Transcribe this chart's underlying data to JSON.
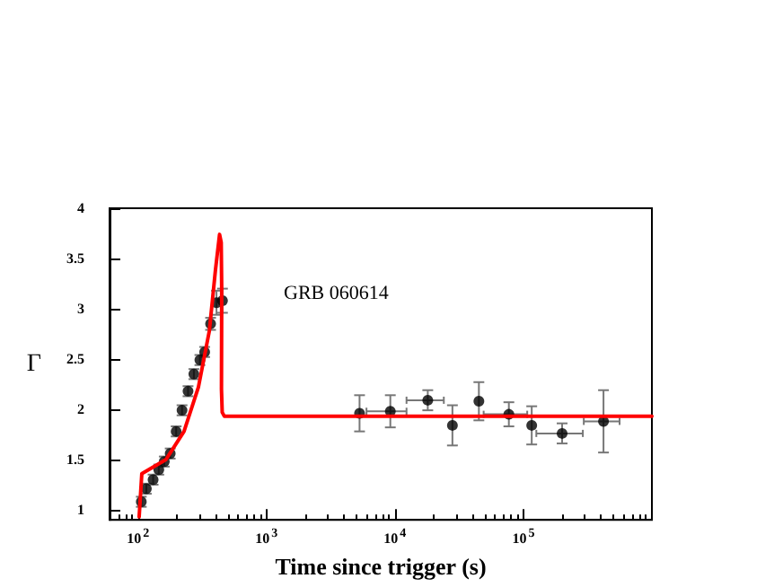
{
  "chart_data": {
    "type": "scatter",
    "xlabel": "Time since trigger (s)",
    "ylabel": "Γ",
    "annotations": [
      "GRB 060614"
    ],
    "log": "x",
    "grid": false,
    "xlim": [
      60,
      1000000
    ],
    "xticks": [
      {
        "value": 100,
        "label": "10$^{2}$"
      },
      {
        "value": 1000,
        "label": "10$^{3}$"
      },
      {
        "value": 10000,
        "label": "10$^{4}$"
      },
      {
        "value": 100000,
        "label": "10$^{5}$"
      }
    ],
    "ylim": [
      0.9,
      4
    ],
    "yticks": [
      1,
      1.5,
      2,
      2.5,
      3,
      3.5,
      4
    ],
    "series": [
      {
        "color": "#000000",
        "marker": "circle",
        "x": [
          106,
          116,
          131,
          145,
          160,
          178,
          198,
          220,
          245,
          272,
          303,
          330,
          367,
          408,
          454,
          5300,
          9200,
          18000,
          28000,
          45000,
          77000,
          116000,
          200000,
          420000
        ],
        "values": [
          1.08,
          1.21,
          1.3,
          1.4,
          1.48,
          1.56,
          1.78,
          1.99,
          2.18,
          2.35,
          2.49,
          2.57,
          2.85,
          3.06,
          3.08,
          1.96,
          1.98,
          2.09,
          1.84,
          2.08,
          1.95,
          1.84,
          1.76,
          1.88
        ],
        "errors": [
          0.05,
          0.05,
          0.05,
          0.05,
          0.05,
          0.05,
          0.05,
          0.05,
          0.05,
          0.05,
          0.05,
          0.05,
          0.06,
          0.12,
          0.12,
          0.18,
          0.16,
          0.1,
          0.2,
          0.19,
          0.12,
          0.19,
          0.1,
          0.31
        ],
        "xerrors": [
          null,
          null,
          null,
          null,
          null,
          null,
          null,
          null,
          null,
          null,
          null,
          null,
          null,
          null,
          null,
          null,
          [
            6000,
            12300
          ],
          [
            12300,
            24000
          ],
          null,
          null,
          [
            49000,
            107000
          ],
          null,
          [
            126000,
            290000
          ],
          [
            295000,
            560000
          ]
        ]
      },
      {
        "type": "line",
        "color": "#ff0000",
        "marker": "none",
        "x": [
          102,
          107,
          165,
          228,
          295,
          359,
          400,
          431,
          444,
          448,
          446,
          452,
          470,
          1000000
        ],
        "values": [
          0.93,
          1.36,
          1.5,
          1.78,
          2.22,
          2.78,
          3.38,
          3.74,
          3.66,
          3.2,
          2.2,
          1.97,
          1.93,
          1.93
        ]
      }
    ]
  }
}
